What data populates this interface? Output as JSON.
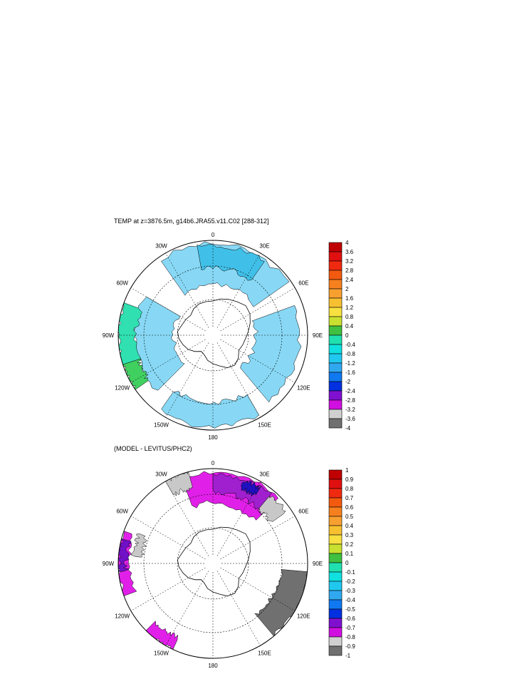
{
  "panels": [
    {
      "title": "TEMP at z=3876.5m, g14b6.JRA55.v11.C02 [288-312]",
      "colorbar_labels": [
        "4",
        "3.6",
        "3.2",
        "2.8",
        "2.4",
        "2",
        "1.6",
        "1.2",
        "0.8",
        "0.4",
        "0",
        "-0.4",
        "-0.8",
        "-1.2",
        "-1.6",
        "-2",
        "-2.4",
        "-2.8",
        "-3.2",
        "-3.6",
        "-4"
      ]
    },
    {
      "title": "(MODEL - LEVITUS/PHC2)",
      "colorbar_labels": [
        "1",
        "0.9",
        "0.8",
        "0.7",
        "0.6",
        "0.5",
        "0.4",
        "0.3",
        "0.2",
        "0.1",
        "0",
        "-0.1",
        "-0.2",
        "-0.3",
        "-0.4",
        "-0.5",
        "-0.6",
        "-0.7",
        "-0.8",
        "-0.9",
        "-1"
      ]
    }
  ],
  "longitude_labels": {
    "top": "0",
    "bottom": "180",
    "upper_right": "30E",
    "right_upper": "60E",
    "right": "90E",
    "right_lower": "120E",
    "lower_right": "150E",
    "upper_left": "30W",
    "left_upper": "60W",
    "left": "90W",
    "left_lower": "120W",
    "lower_left": "150W"
  },
  "colors": {
    "colorbar": [
      "#c00000",
      "#e01010",
      "#f02a10",
      "#f25a10",
      "#f7801e",
      "#f7a030",
      "#f7c030",
      "#f7e040",
      "#c8e030",
      "#40c040",
      "#20e0b0",
      "#10e0e0",
      "#20c8f0",
      "#30a8f0",
      "#1078f0",
      "#0030e0",
      "#8010d0",
      "#d010e0",
      "#d0d0d0",
      "#707070"
    ],
    "panel1": [
      "#88d8f5",
      "#30c8e8",
      "#30e0b0",
      "#40d060",
      "#40c0e8"
    ],
    "panel2": [
      "#e020e8",
      "#a020d0",
      "#7010c8",
      "#2010c0",
      "#c8c8c8",
      "#707070"
    ]
  }
}
